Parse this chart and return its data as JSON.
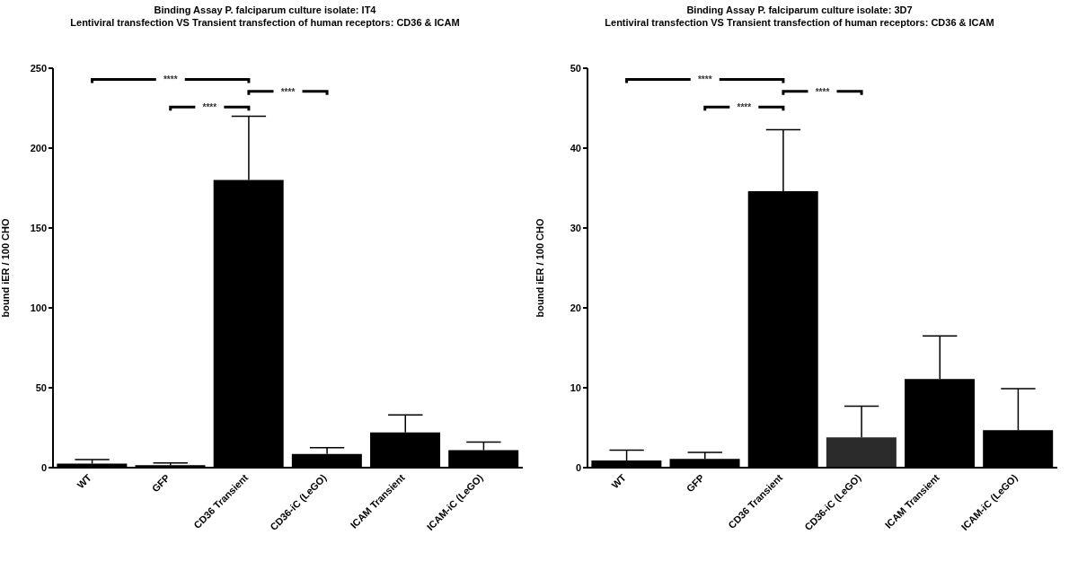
{
  "chart_data": [
    {
      "type": "bar",
      "title": "Binding Assay P. falciparum culture isolate: IT4",
      "subtitle": "Lentiviral transfection VS Transient transfection of human receptors: CD36 & ICAM",
      "ylabel": "bound iER / 100 CHO",
      "categories": [
        "WT",
        "GFP",
        "CD36 Transient",
        "CD36-iC (LeGO)",
        "ICAM Transient",
        "ICAM-iC (LeGO)"
      ],
      "values": [
        2.5,
        1.5,
        180,
        8.5,
        22,
        11
      ],
      "errors": [
        2.5,
        1.5,
        40,
        4,
        11,
        5
      ],
      "colors": [
        "#000000",
        "#000000",
        "#000000",
        "#000000",
        "#000000",
        "#000000"
      ],
      "ylim": [
        0,
        250
      ],
      "yticks": [
        0,
        50,
        100,
        150,
        200,
        250
      ],
      "grid": false,
      "legend": false,
      "annotations": [
        "****",
        "****",
        "****"
      ]
    },
    {
      "type": "bar",
      "title": "Binding Assay P. falciparum culture isolate: 3D7",
      "subtitle": "Lentiviral transfection VS Transient transfection of human receptors: CD36 & ICAM",
      "ylabel": "bound iER / 100 CHO",
      "categories": [
        "WT",
        "GFP",
        "CD36 Transient",
        "CD36-iC (LeGO)",
        "ICAM Transient",
        "ICAM-iC (LeGO)"
      ],
      "values": [
        0.9,
        1.1,
        34.6,
        3.8,
        11.1,
        4.7
      ],
      "errors": [
        1.3,
        0.8,
        7.7,
        3.9,
        5.4,
        5.2
      ],
      "colors": [
        "#000000",
        "#000000",
        "#000000",
        "#2b2b2b",
        "#000000",
        "#000000"
      ],
      "ylim": [
        0,
        50
      ],
      "yticks": [
        0,
        10,
        20,
        30,
        40,
        50
      ],
      "grid": false,
      "legend": false,
      "annotations": [
        "****",
        "****",
        "****"
      ]
    }
  ]
}
